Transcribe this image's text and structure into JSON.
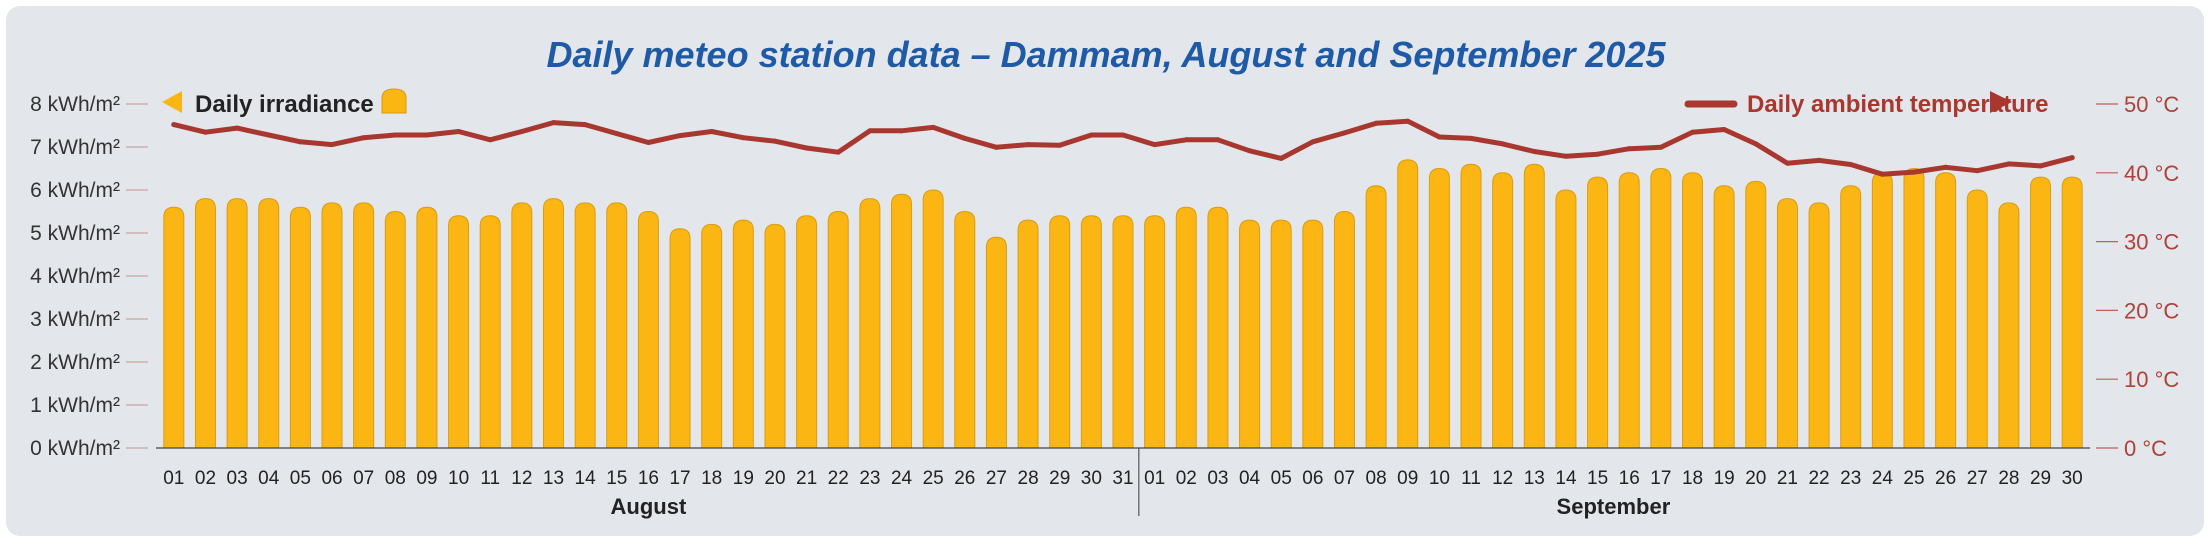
{
  "chart_data": {
    "title": "Daily meteo station data – Dammam, August and September 2025",
    "type": "bar+line",
    "categories": [
      "01",
      "02",
      "03",
      "04",
      "05",
      "06",
      "07",
      "08",
      "09",
      "10",
      "11",
      "12",
      "13",
      "14",
      "15",
      "16",
      "17",
      "18",
      "19",
      "20",
      "21",
      "22",
      "23",
      "24",
      "25",
      "26",
      "27",
      "28",
      "29",
      "30",
      "31",
      "01",
      "02",
      "03",
      "04",
      "05",
      "06",
      "07",
      "08",
      "09",
      "10",
      "11",
      "12",
      "13",
      "14",
      "15",
      "16",
      "17",
      "18",
      "19",
      "20",
      "21",
      "22",
      "23",
      "24",
      "25",
      "26",
      "27",
      "28",
      "29",
      "30"
    ],
    "months": [
      {
        "label": "August",
        "start": 0,
        "count": 31
      },
      {
        "label": "September",
        "start": 31,
        "count": 30
      }
    ],
    "series": [
      {
        "name": "Daily irradiance",
        "type": "bar",
        "axis": "left",
        "unit": "kWh/m²",
        "color": "#fbb614",
        "values": [
          5.6,
          5.8,
          5.8,
          5.8,
          5.6,
          5.7,
          5.7,
          5.5,
          5.6,
          5.4,
          5.4,
          5.7,
          5.8,
          5.7,
          5.7,
          5.5,
          5.1,
          5.2,
          5.3,
          5.2,
          5.4,
          5.5,
          5.8,
          5.9,
          6.0,
          5.5,
          4.9,
          5.3,
          5.4,
          5.4,
          5.4,
          5.4,
          5.6,
          5.6,
          5.3,
          5.3,
          5.3,
          5.5,
          6.1,
          6.7,
          6.5,
          6.6,
          6.4,
          6.6,
          6.0,
          6.3,
          6.4,
          6.5,
          6.4,
          6.1,
          6.2,
          5.8,
          5.7,
          6.1,
          6.4,
          6.5,
          6.4,
          6.0,
          5.7,
          6.3,
          6.3
        ]
      },
      {
        "name": "Daily ambient temperature",
        "type": "line",
        "axis": "right",
        "unit": "°C",
        "color": "#a8382f",
        "values": [
          47.0,
          45.9,
          46.5,
          45.5,
          44.5,
          44.1,
          45.1,
          45.5,
          45.5,
          46.0,
          44.8,
          46.0,
          47.3,
          47.0,
          45.7,
          44.4,
          45.4,
          46.0,
          45.1,
          44.6,
          43.6,
          43.0,
          46.1,
          46.1,
          46.6,
          45.0,
          43.7,
          44.1,
          44.0,
          45.5,
          45.5,
          44.1,
          44.8,
          44.8,
          43.2,
          42.1,
          44.5,
          45.8,
          47.2,
          47.5,
          45.2,
          45.0,
          44.2,
          43.1,
          42.4,
          42.7,
          43.5,
          43.7,
          45.9,
          46.3,
          44.2,
          41.4,
          41.8,
          41.2,
          39.8,
          40.1,
          40.8,
          40.3,
          41.3,
          41.0,
          42.2
        ]
      }
    ],
    "y_left": {
      "min": 0,
      "max": 8,
      "ticks": [
        "0 kWh/m²",
        "1 kWh/m²",
        "2 kWh/m²",
        "3 kWh/m²",
        "4 kWh/m²",
        "5 kWh/m²",
        "6 kWh/m²",
        "7 kWh/m²",
        "8 kWh/m²"
      ]
    },
    "y_right": {
      "min": 0,
      "max": 50,
      "ticks": [
        "0 °C",
        "10 °C",
        "20 °C",
        "30 °C",
        "40 °C",
        "50 °C"
      ]
    },
    "grid": false,
    "legend": {
      "left": {
        "label": "Daily irradiance",
        "placement": "top-left"
      },
      "right": {
        "label": "Daily ambient temperature",
        "placement": "top-right"
      }
    }
  }
}
